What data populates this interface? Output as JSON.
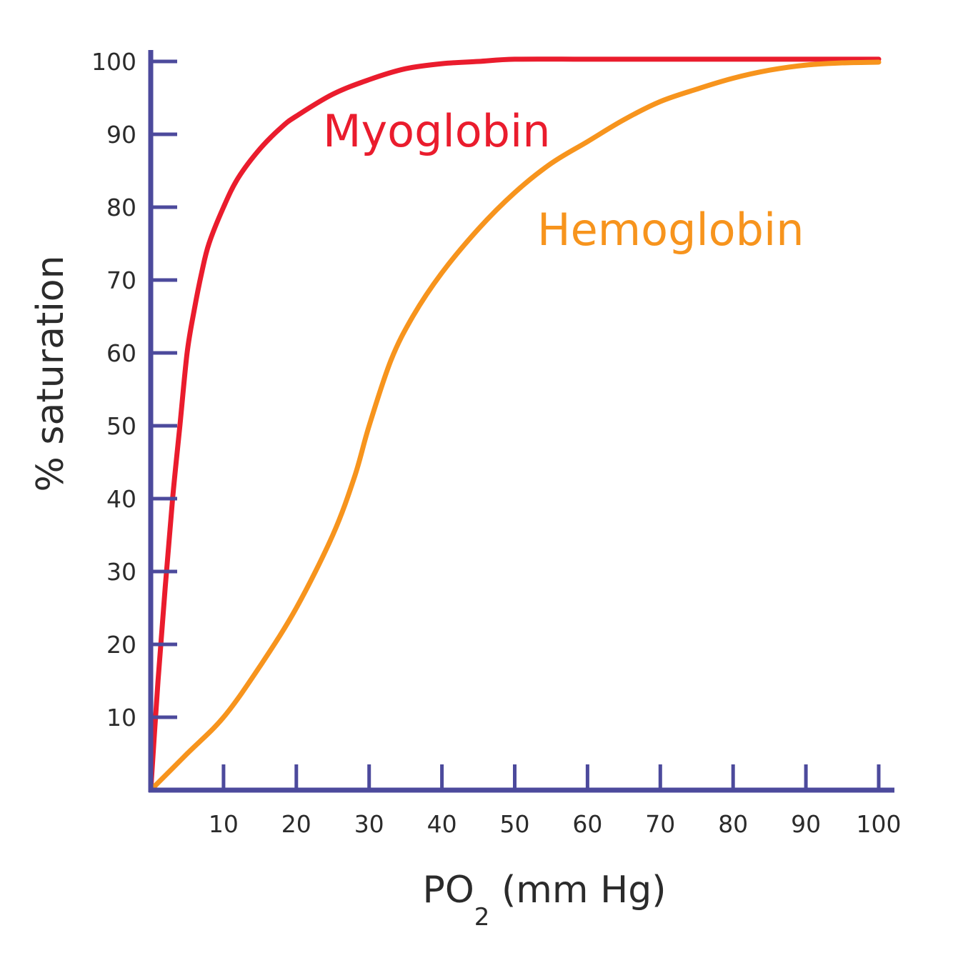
{
  "chart_data": {
    "type": "line",
    "xlabel_main": "PO",
    "xlabel_sub": "2",
    "xlabel_rest": " (mm Hg)",
    "ylabel": "% saturation",
    "xlim": [
      0,
      100
    ],
    "ylim": [
      0,
      100
    ],
    "x_ticks": [
      10,
      20,
      30,
      40,
      50,
      60,
      70,
      80,
      90,
      100
    ],
    "y_ticks": [
      10,
      20,
      30,
      40,
      50,
      60,
      70,
      80,
      90,
      100
    ],
    "axis_color": "#4c4a9c",
    "series": [
      {
        "name": "Myoglobin",
        "color": "#ea1c2d",
        "x": [
          0,
          1,
          2,
          3,
          4,
          5,
          6,
          7,
          8,
          10,
          12,
          15,
          18,
          20,
          25,
          30,
          35,
          40,
          45,
          50,
          60,
          70,
          80,
          90,
          100
        ],
        "y": [
          0,
          15,
          28,
          40,
          50,
          60,
          66,
          71,
          75,
          80,
          84,
          88,
          91,
          92.5,
          95.5,
          97.5,
          99,
          99.7,
          100,
          100.3,
          100.3,
          100.3,
          100.3,
          100.3,
          100.3
        ]
      },
      {
        "name": "Hemoglobin",
        "color": "#f7941d",
        "x": [
          0,
          5,
          10,
          15,
          20,
          25,
          28,
          30,
          33,
          36,
          40,
          45,
          50,
          55,
          60,
          65,
          70,
          75,
          80,
          85,
          90,
          95,
          100
        ],
        "y": [
          0,
          5,
          10,
          17,
          25,
          35,
          43,
          50,
          59,
          65,
          71,
          77,
          82,
          86,
          89,
          92,
          94.5,
          96.2,
          97.7,
          98.8,
          99.5,
          99.8,
          99.9
        ]
      }
    ]
  }
}
